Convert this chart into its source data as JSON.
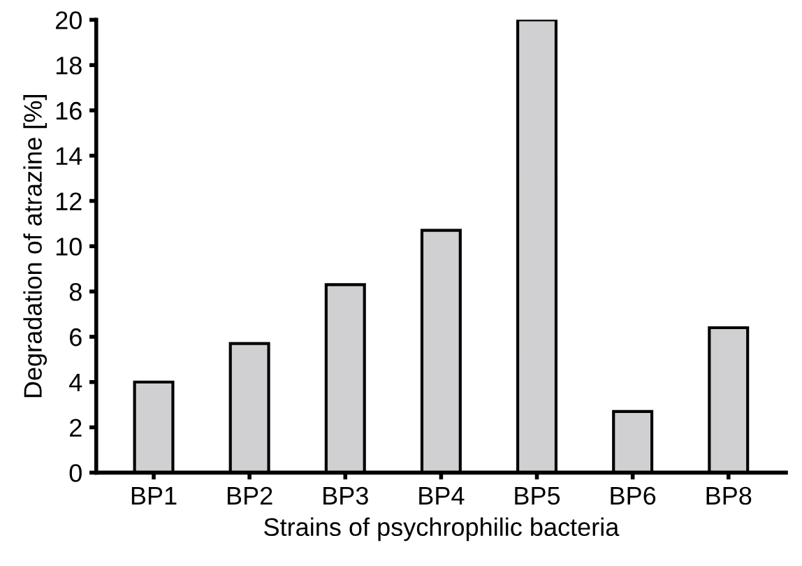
{
  "chart_data": {
    "type": "bar",
    "xlabel": "Strains of psychrophilic bacteria",
    "ylabel": "Degradation of atrazine [%]",
    "categories": [
      "BP1",
      "BP2",
      "BP3",
      "BP4",
      "BP5",
      "BP6",
      "BP8"
    ],
    "values": [
      4.0,
      5.7,
      8.3,
      10.7,
      20,
      2.7,
      6.4
    ],
    "color": "#d0d0d2",
    "ylim": [
      0,
      20
    ],
    "yticks": [
      0,
      2,
      4,
      6,
      8,
      10,
      12,
      14,
      16,
      18,
      20
    ],
    "grid": false
  }
}
